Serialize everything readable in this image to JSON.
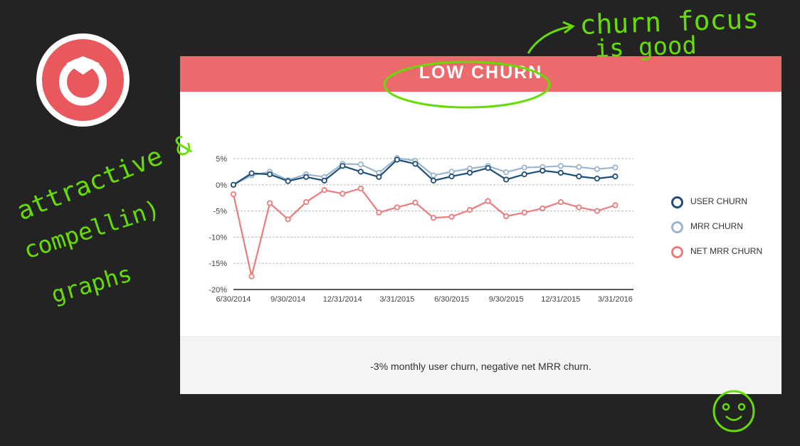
{
  "slide": {
    "title": "LOW CHURN",
    "caption": "-3% monthly user churn, negative net MRR churn."
  },
  "annotations": {
    "note_top": [
      "churn focus",
      "is good"
    ],
    "note_left": [
      "attractive &",
      "compellin)",
      "graphs"
    ]
  },
  "colors": {
    "header": "#ec6a6b",
    "user_churn": "#1f4e79",
    "mrr_churn": "#9ab6cf",
    "net_mrr_churn": "#ec7b7c",
    "ink": "#66dd00",
    "logo": "#e8585c"
  },
  "icons": {
    "logo": "pocket-logo-icon",
    "smiley": "smiley-doodle-icon"
  },
  "chart_data": {
    "type": "line",
    "x": [
      "6/30/2014",
      "7/31/2014",
      "8/31/2014",
      "9/30/2014",
      "10/31/2014",
      "11/30/2014",
      "12/31/2014",
      "1/31/2015",
      "2/28/2015",
      "3/31/2015",
      "4/30/2015",
      "5/31/2015",
      "6/30/2015",
      "7/31/2015",
      "8/31/2015",
      "9/30/2015",
      "10/31/2015",
      "11/30/2015",
      "12/31/2015",
      "1/31/2016",
      "2/29/2016",
      "3/31/2016",
      "4/30/2016"
    ],
    "x_tick_labels": [
      "6/30/2014",
      "9/30/2014",
      "12/31/2014",
      "3/31/2015",
      "6/30/2015",
      "9/30/2015",
      "12/31/2015",
      "3/31/2016"
    ],
    "y_tick_labels": [
      "5%",
      "0%",
      "-5%",
      "-10%",
      "-15%",
      "-20%"
    ],
    "ylim": [
      -20,
      5
    ],
    "yticks": [
      5,
      0,
      -5,
      -10,
      -15,
      -20
    ],
    "grid": true,
    "legend_position": "right",
    "series": [
      {
        "name": "USER CHURN",
        "color": "#1f4e79",
        "values": [
          0,
          2.2,
          2,
          0.7,
          1.5,
          0.8,
          3.6,
          2.5,
          1.5,
          4.8,
          4,
          0.8,
          1.6,
          2.3,
          3.2,
          1,
          2,
          2.7,
          2.3,
          1.6,
          1.2,
          1.6,
          null
        ]
      },
      {
        "name": "MRR CHURN",
        "color": "#9ab6cf",
        "values": [
          0,
          1.8,
          2.5,
          0.9,
          2,
          1.5,
          4,
          3.9,
          2.3,
          5.1,
          4.6,
          1.8,
          2.5,
          3.1,
          3.6,
          2.4,
          3.3,
          3.4,
          3.6,
          3.4,
          3,
          3.3,
          null
        ]
      },
      {
        "name": "NET MRR CHURN",
        "color": "#ec7b7c",
        "values": [
          -1.8,
          -17.5,
          -3.5,
          -6.6,
          -3.3,
          -1,
          -1.7,
          -0.7,
          -5.3,
          -4.3,
          -3.4,
          -6.3,
          -6.1,
          -4.8,
          -3.1,
          -6,
          -5.3,
          -4.5,
          -3.3,
          -4.3,
          -5,
          -3.9,
          null
        ]
      }
    ]
  }
}
